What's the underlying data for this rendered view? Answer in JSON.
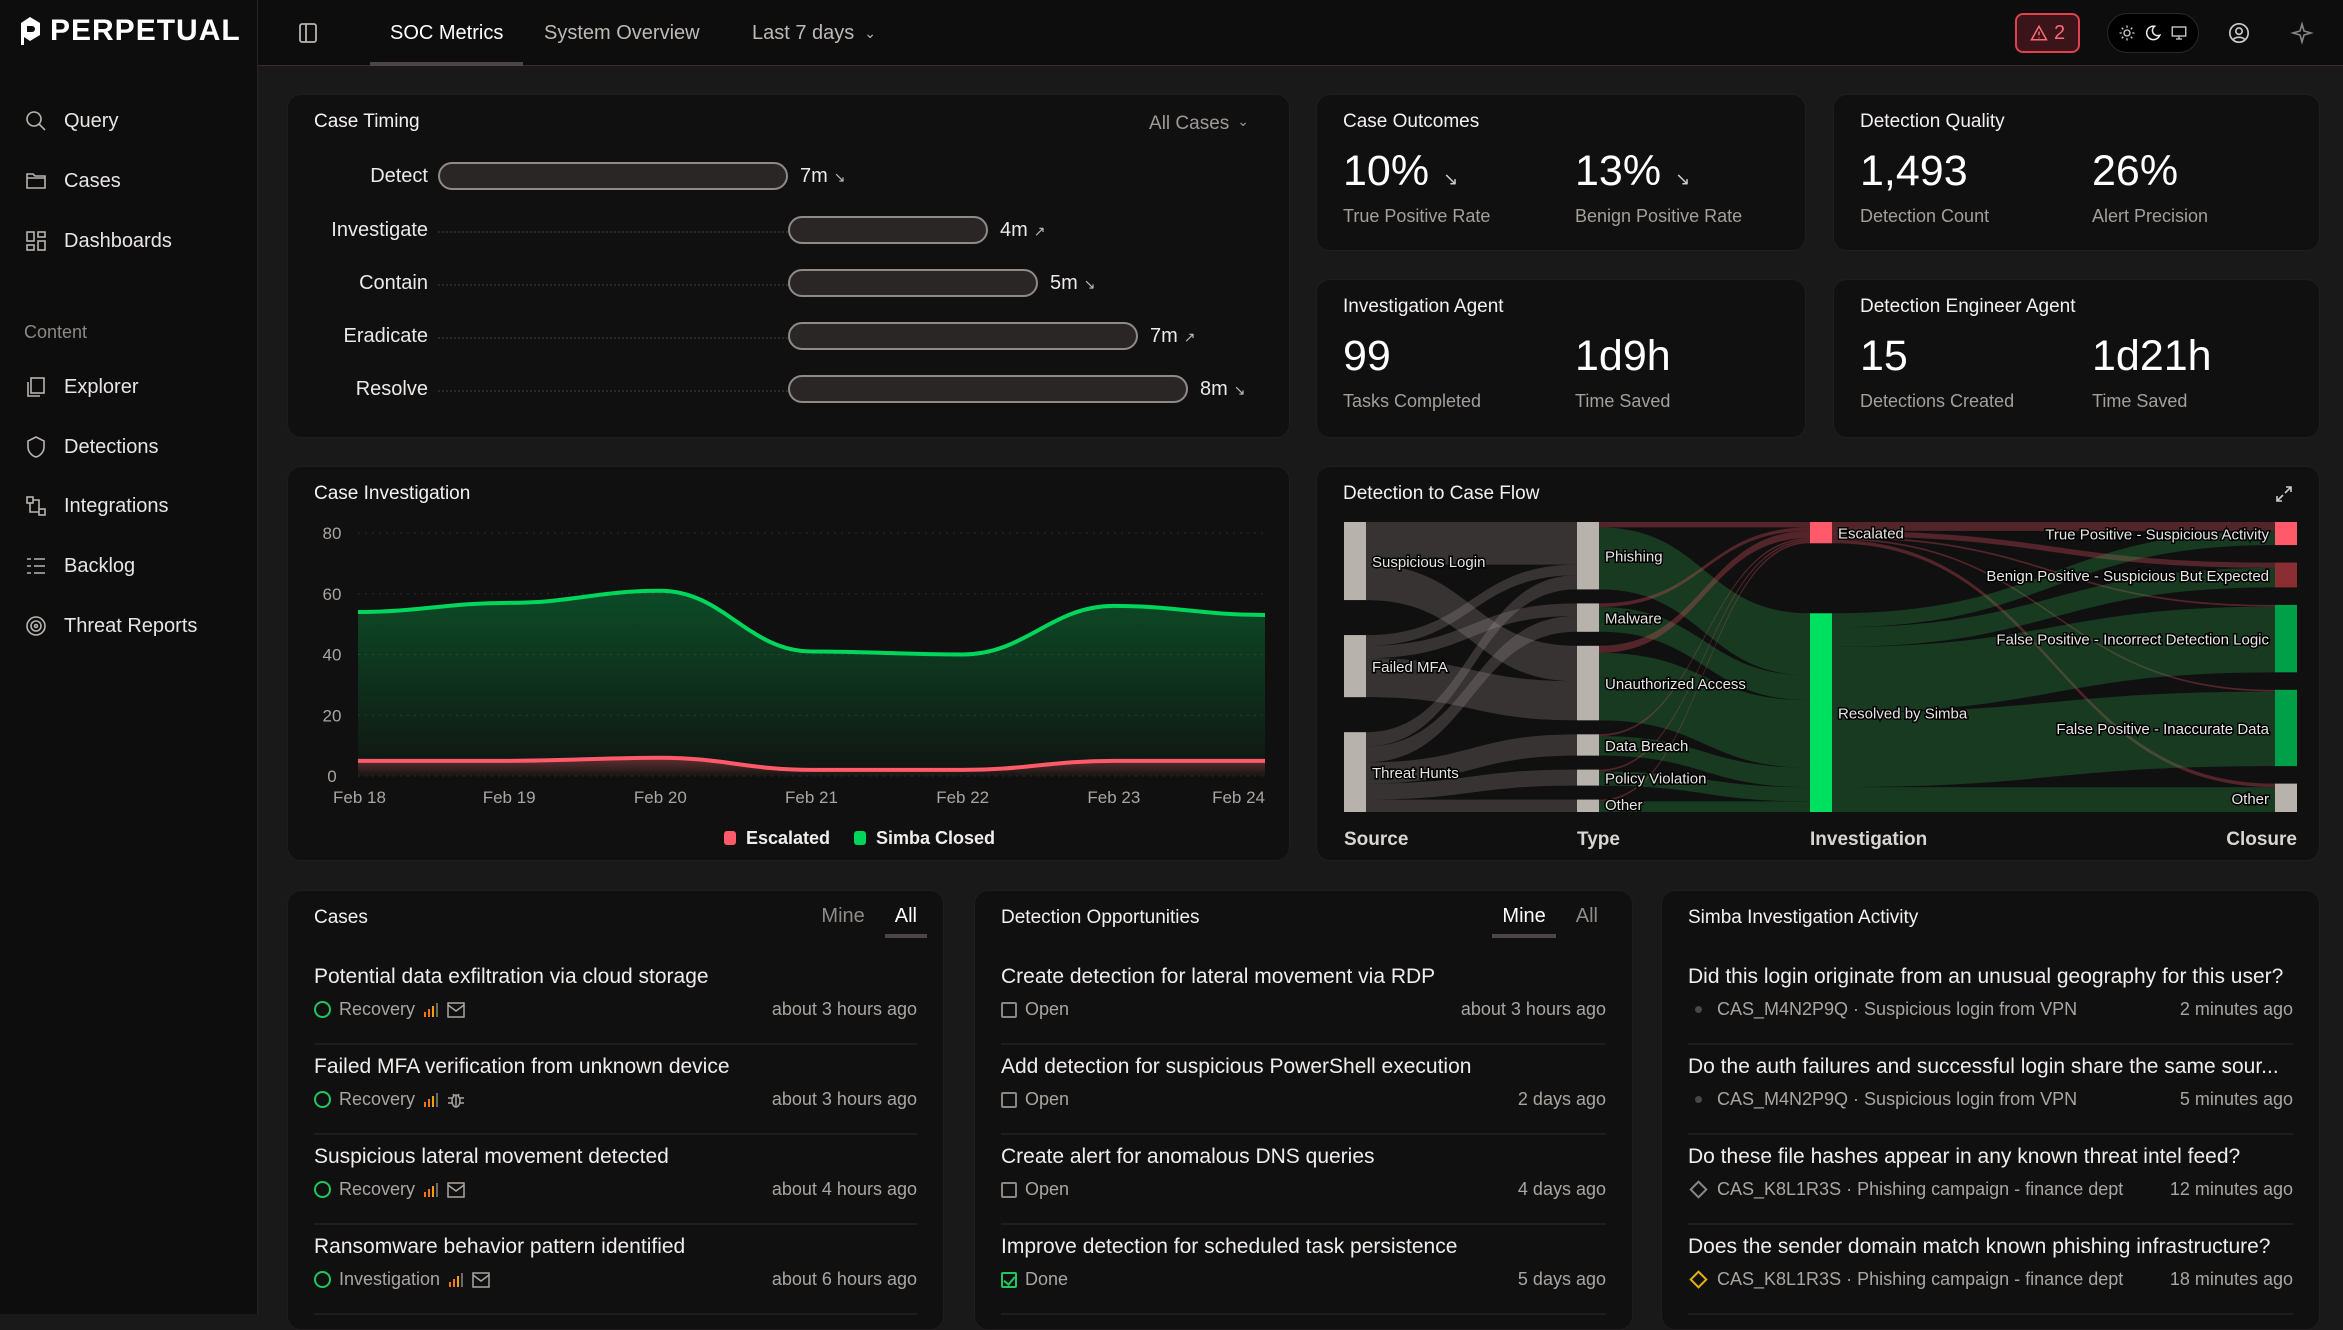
{
  "app": {
    "logo": "PERPETUAL"
  },
  "sidebar": {
    "items": [
      {
        "label": "Query",
        "icon": "search-icon"
      },
      {
        "label": "Cases",
        "icon": "folder-icon"
      },
      {
        "label": "Dashboards",
        "icon": "dashboard-icon"
      }
    ],
    "section": "Content",
    "content_items": [
      {
        "label": "Explorer",
        "icon": "explorer-icon"
      },
      {
        "label": "Detections",
        "icon": "shield-icon"
      },
      {
        "label": "Integrations",
        "icon": "integrations-icon"
      },
      {
        "label": "Backlog",
        "icon": "backlog-icon"
      },
      {
        "label": "Threat Reports",
        "icon": "threat-reports-icon"
      }
    ]
  },
  "header": {
    "tabs": [
      "SOC Metrics",
      "System Overview"
    ],
    "active_tab": "SOC Metrics",
    "range": "Last 7 days",
    "alert_count": "2"
  },
  "case_timing": {
    "title": "Case Timing",
    "filter": "All Cases",
    "phases": [
      {
        "label": "Detect",
        "minutes": 7,
        "value": "7m",
        "trend": "down"
      },
      {
        "label": "Investigate",
        "minutes": 4,
        "value": "4m",
        "trend": "up"
      },
      {
        "label": "Contain",
        "minutes": 5,
        "value": "5m",
        "trend": "down"
      },
      {
        "label": "Eradicate",
        "minutes": 7,
        "value": "7m",
        "trend": "up"
      },
      {
        "label": "Resolve",
        "minutes": 8,
        "value": "8m",
        "trend": "down"
      }
    ]
  },
  "case_outcomes": {
    "title": "Case Outcomes",
    "stats": [
      {
        "value": "10%",
        "label": "True Positive Rate",
        "trend": "down"
      },
      {
        "value": "13%",
        "label": "Benign Positive Rate",
        "trend": "down"
      }
    ]
  },
  "detection_quality": {
    "title": "Detection Quality",
    "stats": [
      {
        "value": "1,493",
        "label": "Detection Count"
      },
      {
        "value": "26%",
        "label": "Alert Precision"
      }
    ]
  },
  "investigation_agent": {
    "title": "Investigation Agent",
    "stats": [
      {
        "value": "99",
        "label": "Tasks Completed"
      },
      {
        "value": "1d9h",
        "label": "Time Saved"
      }
    ]
  },
  "detection_engineer_agent": {
    "title": "Detection Engineer Agent",
    "stats": [
      {
        "value": "15",
        "label": "Detections Created"
      },
      {
        "value": "1d21h",
        "label": "Time Saved"
      }
    ]
  },
  "chart_data": [
    {
      "type": "area",
      "title": "Case Investigation",
      "categories": [
        "Feb 18",
        "Feb 19",
        "Feb 20",
        "Feb 21",
        "Feb 22",
        "Feb 23",
        "Feb 24"
      ],
      "ylim": [
        0,
        80
      ],
      "yticks": [
        0,
        20,
        40,
        60,
        80
      ],
      "grid": true,
      "legend": "bottom",
      "series": [
        {
          "name": "Escalated",
          "color": "#ff5a6a",
          "values": [
            5,
            5,
            6,
            2,
            2,
            5,
            5
          ]
        },
        {
          "name": "Simba Closed",
          "color": "#00d65c",
          "values": [
            54,
            57,
            61,
            41,
            40,
            56,
            53
          ]
        }
      ]
    },
    {
      "type": "sankey",
      "title": "Detection to Case Flow",
      "columns": [
        "Source",
        "Type",
        "Investigation",
        "Closure"
      ],
      "nodes": [
        {
          "id": "sl",
          "label": "Suspicious Login",
          "column": 0,
          "color": "#b8b2ad"
        },
        {
          "id": "mfa",
          "label": "Failed MFA",
          "column": 0,
          "color": "#b8b2ad"
        },
        {
          "id": "th",
          "label": "Threat Hunts",
          "column": 0,
          "color": "#b8b2ad"
        },
        {
          "id": "ph",
          "label": "Phishing",
          "column": 1,
          "color": "#b8b2ad"
        },
        {
          "id": "mw",
          "label": "Malware",
          "column": 1,
          "color": "#b8b2ad"
        },
        {
          "id": "ua",
          "label": "Unauthorized Access",
          "column": 1,
          "color": "#b8b2ad"
        },
        {
          "id": "db",
          "label": "Data Breach",
          "column": 1,
          "color": "#b8b2ad"
        },
        {
          "id": "pv",
          "label": "Policy Violation",
          "column": 1,
          "color": "#b8b2ad"
        },
        {
          "id": "ot",
          "label": "Other",
          "column": 1,
          "color": "#b8b2ad"
        },
        {
          "id": "esc",
          "label": "Escalated",
          "column": 2,
          "color": "#ff5a6a"
        },
        {
          "id": "res",
          "label": "Resolved by Simba",
          "column": 2,
          "color": "#00e060"
        },
        {
          "id": "tp",
          "label": "True Positive - Suspicious Activity",
          "column": 3,
          "color": "#ff5a6a"
        },
        {
          "id": "bp",
          "label": "Benign Positive - Suspicious But Expected",
          "column": 3,
          "color": "#8b2e33"
        },
        {
          "id": "fpl",
          "label": "False Positive - Incorrect Detection Logic",
          "column": 3,
          "color": "#00a048"
        },
        {
          "id": "fpd",
          "label": "False Positive - Inaccurate Data",
          "column": 3,
          "color": "#00a048"
        },
        {
          "id": "co",
          "label": "Other",
          "column": 3,
          "color": "#b8b2ad"
        }
      ],
      "links": [
        {
          "source": "sl",
          "target": "ph",
          "value": 24
        },
        {
          "source": "sl",
          "target": "ua",
          "value": 20
        },
        {
          "source": "mfa",
          "target": "ph",
          "value": 6
        },
        {
          "source": "mfa",
          "target": "mw",
          "value": 7
        },
        {
          "source": "mfa",
          "target": "ua",
          "value": 22
        },
        {
          "source": "th",
          "target": "ph",
          "value": 8
        },
        {
          "source": "th",
          "target": "mw",
          "value": 9
        },
        {
          "source": "th",
          "target": "db",
          "value": 12
        },
        {
          "source": "th",
          "target": "pv",
          "value": 9
        },
        {
          "source": "th",
          "target": "ot",
          "value": 7
        },
        {
          "source": "ph",
          "target": "esc",
          "value": 3
        },
        {
          "source": "ph",
          "target": "res",
          "value": 35
        },
        {
          "source": "mw",
          "target": "esc",
          "value": 2
        },
        {
          "source": "mw",
          "target": "res",
          "value": 14
        },
        {
          "source": "ua",
          "target": "esc",
          "value": 4
        },
        {
          "source": "ua",
          "target": "res",
          "value": 38
        },
        {
          "source": "db",
          "target": "esc",
          "value": 1
        },
        {
          "source": "db",
          "target": "res",
          "value": 11
        },
        {
          "source": "pv",
          "target": "esc",
          "value": 1
        },
        {
          "source": "pv",
          "target": "res",
          "value": 8
        },
        {
          "source": "ot",
          "target": "esc",
          "value": 1
        },
        {
          "source": "ot",
          "target": "res",
          "value": 6
        },
        {
          "source": "esc",
          "target": "tp",
          "value": 5
        },
        {
          "source": "esc",
          "target": "bp",
          "value": 3
        },
        {
          "source": "esc",
          "target": "fpl",
          "value": 1
        },
        {
          "source": "esc",
          "target": "fpd",
          "value": 1
        },
        {
          "source": "esc",
          "target": "co",
          "value": 2
        },
        {
          "source": "res",
          "target": "tp",
          "value": 8
        },
        {
          "source": "res",
          "target": "bp",
          "value": 11
        },
        {
          "source": "res",
          "target": "fpl",
          "value": 37
        },
        {
          "source": "res",
          "target": "fpd",
          "value": 42
        },
        {
          "source": "res",
          "target": "co",
          "value": 14
        }
      ]
    }
  ],
  "cases": {
    "title": "Cases",
    "tabs": [
      "Mine",
      "All"
    ],
    "active_tab": "All",
    "items": [
      {
        "title": "Potential data exfiltration via cloud storage",
        "status": "Recovery",
        "icon": "mail-icon",
        "time": "about 3 hours ago"
      },
      {
        "title": "Failed MFA verification from unknown device",
        "status": "Recovery",
        "icon": "bug-icon",
        "time": "about 3 hours ago"
      },
      {
        "title": "Suspicious lateral movement detected",
        "status": "Recovery",
        "icon": "mail-icon",
        "time": "about 4 hours ago"
      },
      {
        "title": "Ransomware behavior pattern identified",
        "status": "Investigation",
        "icon": "mail-icon",
        "time": "about 6 hours ago"
      }
    ]
  },
  "detection_opportunities": {
    "title": "Detection Opportunities",
    "tabs": [
      "Mine",
      "All"
    ],
    "active_tab": "Mine",
    "items": [
      {
        "title": "Create detection for lateral movement via RDP",
        "status": "Open",
        "time": "about 3 hours ago"
      },
      {
        "title": "Add detection for suspicious PowerShell execution",
        "status": "Open",
        "time": "2 days ago"
      },
      {
        "title": "Create alert for anomalous DNS queries",
        "status": "Open",
        "time": "4 days ago"
      },
      {
        "title": "Improve detection for scheduled task persistence",
        "status": "Done",
        "time": "5 days ago"
      }
    ]
  },
  "simba_activity": {
    "title": "Simba Investigation Activity",
    "items": [
      {
        "title": "Did this login originate from an unusual geography for this user?",
        "case": "CAS_M4N2P9Q · Suspicious login from VPN",
        "marker": "dot",
        "time": "2 minutes ago"
      },
      {
        "title": "Do the auth failures and successful login share the same sour...",
        "case": "CAS_M4N2P9Q · Suspicious login from VPN",
        "marker": "dot",
        "time": "5 minutes ago"
      },
      {
        "title": "Do these file hashes appear in any known threat intel feed?",
        "case": "CAS_K8L1R3S · Phishing campaign - finance dept",
        "marker": "diamond",
        "time": "12 minutes ago"
      },
      {
        "title": "Does the sender domain match known phishing infrastructure?",
        "case": "CAS_K8L1R3S · Phishing campaign - finance dept",
        "marker": "diamond-yellow",
        "time": "18 minutes ago"
      }
    ]
  }
}
